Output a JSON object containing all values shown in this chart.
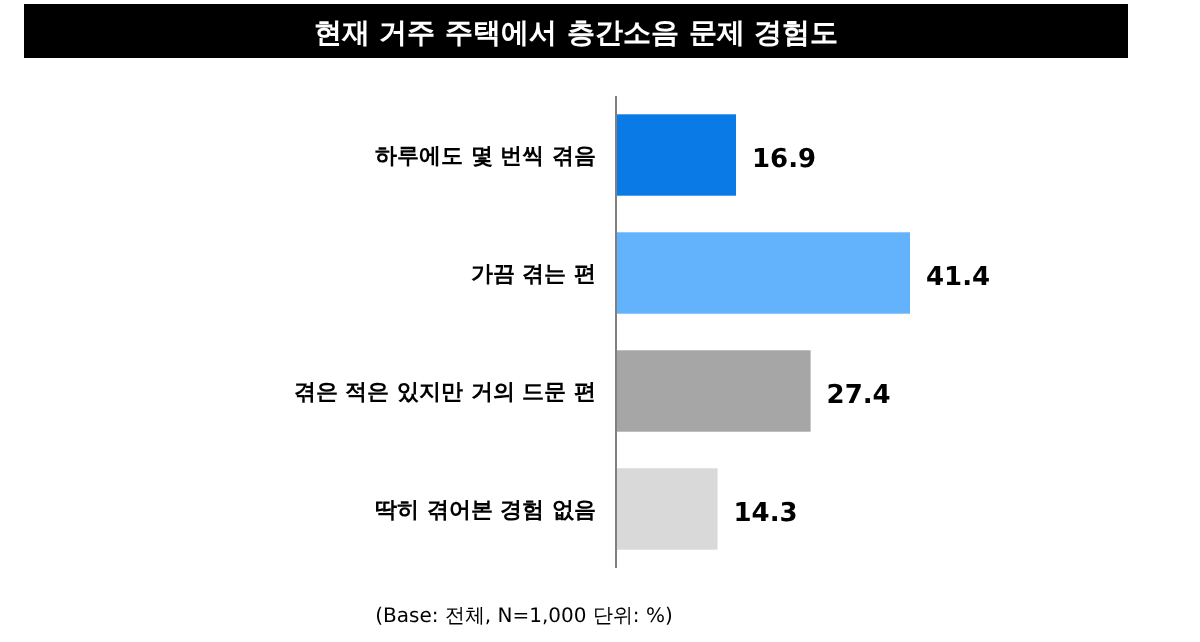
{
  "chart_data": {
    "type": "bar",
    "orientation": "horizontal",
    "title": "현재 거주 주택에서 층간소음 문제 경험도",
    "categories": [
      "하루에도 몇 번씩 겪음",
      "가끔 겪는 편",
      "겪은 적은 있지만 거의 드문 편",
      "딱히 겪어본 경험 없음"
    ],
    "values": [
      16.9,
      41.4,
      27.4,
      14.3
    ],
    "colors": [
      "#0a7ae6",
      "#63b3fc",
      "#a6a6a6",
      "#d9d9d9"
    ],
    "data_labels": true,
    "annotations": [
      "(Base: 전체, N=1,000 단위: %)"
    ]
  }
}
